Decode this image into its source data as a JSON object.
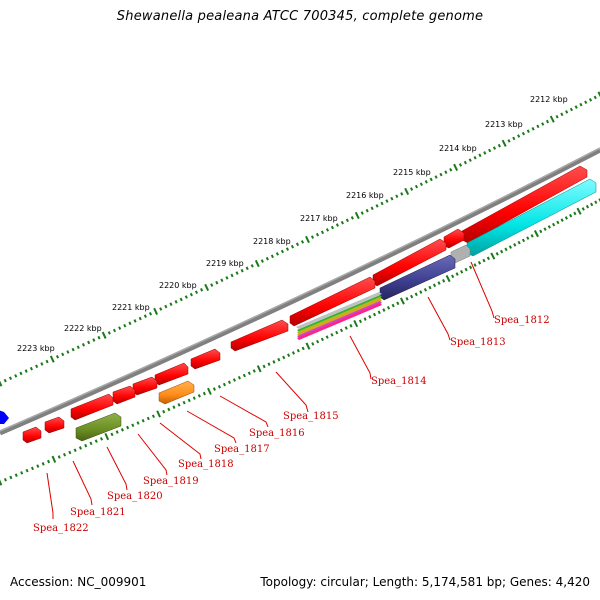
{
  "title": "Shewanella pealeana ATCC 700345, complete genome",
  "footer": {
    "accession": "Accession: NC_009901",
    "summary": "Topology: circular; Length: 5,174,581 bp; Genes: 4,420"
  },
  "colors": {
    "backbone": "#808080",
    "tick": "#1a7a1a",
    "cds": "#ff0000",
    "label": "#cc0000",
    "gene_1812": "#00e5e5",
    "gene_1813": "#3d3d8f",
    "gene_1818": "#ff8c1a",
    "gene_1820": "#6b8e23",
    "marker": "#0000ff"
  },
  "scale": {
    "unit": "kbp",
    "labels": [
      "2212 kbp",
      "2213 kbp",
      "2214 kbp",
      "2215 kbp",
      "2216 kbp",
      "2217 kbp",
      "2218 kbp",
      "2219 kbp",
      "2220 kbp",
      "2221 kbp",
      "2222 kbp",
      "2223 kbp"
    ]
  },
  "genes": [
    {
      "name": "Spea_1812",
      "color": "cyan"
    },
    {
      "name": "Spea_1813",
      "color": "dark-blue"
    },
    {
      "name": "Spea_1814",
      "color": "multicolor"
    },
    {
      "name": "Spea_1815",
      "color": "red"
    },
    {
      "name": "Spea_1816",
      "color": "red"
    },
    {
      "name": "Spea_1817",
      "color": "red"
    },
    {
      "name": "Spea_1818",
      "color": "orange"
    },
    {
      "name": "Spea_1819",
      "color": "red"
    },
    {
      "name": "Spea_1820",
      "color": "olive"
    },
    {
      "name": "Spea_1821",
      "color": "red"
    },
    {
      "name": "Spea_1822",
      "color": "red"
    }
  ]
}
